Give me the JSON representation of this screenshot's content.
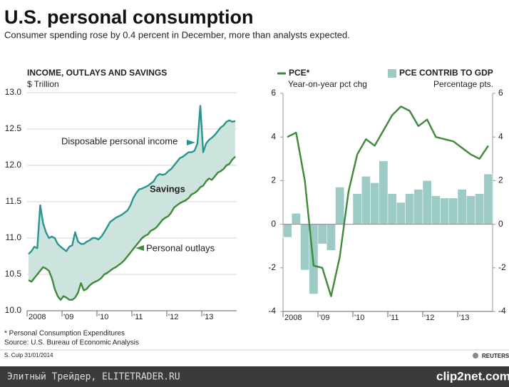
{
  "header": {
    "title": "U.S. personal consumption",
    "subtitle": "Consumer spending rose by 0.4 percent in December, more than analysts expected."
  },
  "chart_data": [
    {
      "type": "line",
      "title": "INCOME, OUTLAYS AND SAVINGS",
      "y_label": "$ Trillion",
      "grid": true,
      "area_between": true,
      "area_color": "#cce4dd",
      "categories": [
        "2008",
        null,
        null,
        null,
        null,
        null,
        null,
        null,
        null,
        null,
        null,
        null,
        "'09",
        null,
        null,
        null,
        null,
        null,
        null,
        null,
        null,
        null,
        null,
        null,
        "'10",
        null,
        null,
        null,
        null,
        null,
        null,
        null,
        null,
        null,
        null,
        null,
        "'11",
        null,
        null,
        null,
        null,
        null,
        null,
        null,
        null,
        null,
        null,
        null,
        "'12",
        null,
        null,
        null,
        null,
        null,
        null,
        null,
        null,
        null,
        null,
        null,
        "'13",
        null,
        null,
        null,
        null,
        null,
        null,
        null,
        null,
        null,
        null,
        null
      ],
      "series": [
        {
          "name": "Disposable personal income",
          "color": "#2a9490",
          "values": [
            10.78,
            10.82,
            10.88,
            10.86,
            11.45,
            11.2,
            11.08,
            11.0,
            11.02,
            11.0,
            10.92,
            10.88,
            10.85,
            10.82,
            10.88,
            10.9,
            11.08,
            10.95,
            10.92,
            10.92,
            10.95,
            10.97,
            11.0,
            11.0,
            10.98,
            11.02,
            11.08,
            11.15,
            11.22,
            11.25,
            11.28,
            11.3,
            11.32,
            11.35,
            11.38,
            11.45,
            11.55,
            11.62,
            11.67,
            11.68,
            11.7,
            11.72,
            11.75,
            11.78,
            11.85,
            11.88,
            11.87,
            11.88,
            11.92,
            11.95,
            12.0,
            12.05,
            12.1,
            12.12,
            12.15,
            12.18,
            12.18,
            12.2,
            12.3,
            12.82,
            12.18,
            12.3,
            12.35,
            12.38,
            12.42,
            12.47,
            12.52,
            12.55,
            12.6,
            12.62,
            12.6,
            12.61
          ]
        },
        {
          "name": "Personal outlays",
          "color": "#3f8a3a",
          "values": [
            10.42,
            10.4,
            10.45,
            10.5,
            10.55,
            10.6,
            10.58,
            10.55,
            10.45,
            10.3,
            10.2,
            10.15,
            10.2,
            10.18,
            10.15,
            10.15,
            10.18,
            10.25,
            10.38,
            10.28,
            10.3,
            10.35,
            10.38,
            10.4,
            10.42,
            10.45,
            10.5,
            10.52,
            10.55,
            10.58,
            10.6,
            10.63,
            10.66,
            10.7,
            10.75,
            10.8,
            10.85,
            10.9,
            10.95,
            11.0,
            11.03,
            11.05,
            11.1,
            11.12,
            11.15,
            11.2,
            11.25,
            11.28,
            11.3,
            11.35,
            11.42,
            11.45,
            11.48,
            11.5,
            11.52,
            11.55,
            11.6,
            11.62,
            11.65,
            11.7,
            11.72,
            11.78,
            11.82,
            11.8,
            11.85,
            11.9,
            11.92,
            11.95,
            12.0,
            12.02,
            12.08,
            12.12
          ]
        }
      ],
      "annotation": "Savings",
      "ylim": [
        10.0,
        13.0
      ],
      "yticks": [
        {
          "value": 10.0,
          "label": "10.0"
        },
        10.5,
        {
          "value": 11.0,
          "label": "11.0"
        },
        11.5,
        {
          "value": 12.0,
          "label": "12.0"
        },
        12.5,
        {
          "value": 13.0,
          "label": "13.0"
        }
      ]
    },
    {
      "type": "bar-line",
      "grid": false,
      "categories": [
        "2008",
        null,
        null,
        null,
        "'09",
        null,
        null,
        null,
        "'10",
        null,
        null,
        null,
        "'11",
        null,
        null,
        null,
        "'12",
        null,
        null,
        null,
        "'13",
        null,
        null,
        null
      ],
      "series": [
        {
          "name": "PCE*",
          "unit": "Year-on-year pct chg",
          "type": "line",
          "color": "#3f8a3a",
          "values": [
            4.0,
            4.2,
            2.0,
            -1.9,
            -2.0,
            -3.3,
            -1.5,
            1.5,
            3.2,
            3.9,
            3.6,
            4.3,
            5.0,
            5.4,
            5.2,
            4.5,
            4.8,
            4.0,
            3.9,
            3.8,
            3.5,
            3.2,
            3.0,
            3.6
          ]
        },
        {
          "name": "PCE CONTRIB TO GDP",
          "unit": "Percentage pts.",
          "type": "bar",
          "axis": "y2",
          "color": "#9ccac4",
          "values": [
            -0.6,
            0.5,
            -2.1,
            -3.2,
            -0.9,
            -1.2,
            1.7,
            0,
            1.4,
            2.2,
            1.9,
            2.9,
            1.4,
            1.0,
            1.4,
            1.6,
            2.0,
            1.3,
            1.2,
            1.2,
            1.6,
            1.3,
            1.4,
            2.3
          ]
        }
      ],
      "ylim": [
        -4,
        6
      ],
      "yticks": [
        -4,
        -2,
        0,
        2,
        4,
        6
      ],
      "y2lim": [
        -4,
        6
      ],
      "y2ticks": [
        -4,
        -2,
        0,
        2,
        4,
        6
      ]
    }
  ],
  "footer": {
    "note": "* Personal Consumption Expenditures",
    "source": "Source: U.S. Bureau of Economic Analysis",
    "credit": "S. Culp 31/01/2014",
    "brand": "REUTERS"
  },
  "watermark": {
    "site": "Элитный Трейдер, ELITETRADER.RU",
    "logo": "clip2net.com"
  }
}
